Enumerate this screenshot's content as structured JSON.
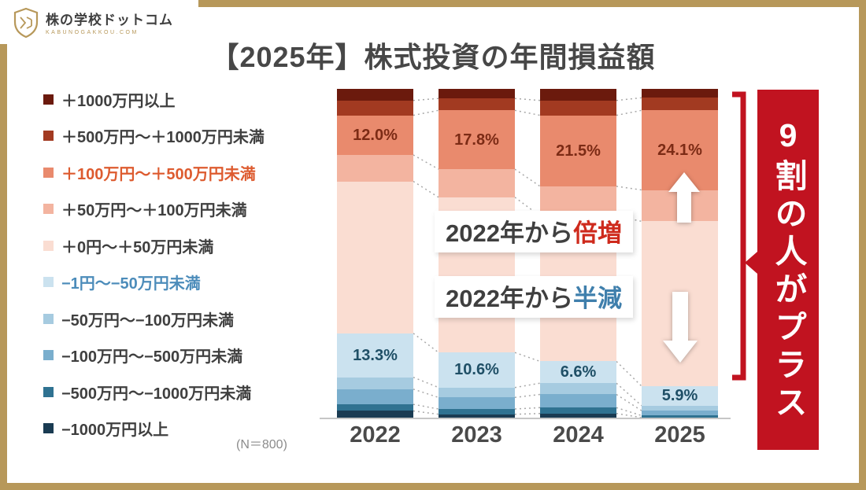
{
  "page": {
    "frame_color": "#B7985A",
    "background": "#FFFFFF"
  },
  "brand": {
    "name": "株の学校ドットコム",
    "subtitle": "KABUNOGAKKOU.COM"
  },
  "title": "【2025年】株式投資の年間損益額",
  "sample_note": "(N＝800)",
  "side_banner": {
    "text": "9割の人がプラス",
    "color": "#C11320"
  },
  "annotations": {
    "doubled": {
      "prefix": "2022年から",
      "highlight": "倍増",
      "highlight_color": "#CE2A1C"
    },
    "halved": {
      "prefix": "2022年から",
      "highlight": "半減",
      "highlight_color": "#3F7FAC"
    }
  },
  "chart_data": {
    "type": "bar",
    "stacked": true,
    "title": "【2025年】株式投資の年間損益額",
    "unit": "%",
    "ylim": [
      0,
      100
    ],
    "legend_position": "left",
    "categories": [
      "2022",
      "2023",
      "2024",
      "2025"
    ],
    "series": [
      {
        "name": "＋1000万円以上",
        "color": "#6B1A0D",
        "values": [
          3.5,
          2.9,
          3.5,
          2.7
        ]
      },
      {
        "name": "＋500万円～＋1000万円未満",
        "color": "#A23A21",
        "values": [
          4.5,
          3.6,
          4.5,
          3.8
        ]
      },
      {
        "name": "＋100万円～＋500万円未満",
        "color": "#E98A6D",
        "legend_text_color": "#DD5B2F",
        "label_color": "#7C2B15",
        "labels": [
          "12.0%",
          "17.8%",
          "21.5%",
          "24.1%"
        ],
        "values": [
          12.0,
          17.8,
          21.5,
          24.1
        ]
      },
      {
        "name": "＋50万円～＋100万円未満",
        "color": "#F3B4A0",
        "values": [
          8.0,
          8.5,
          9.0,
          9.5
        ]
      },
      {
        "name": "＋0円～＋50万円未満",
        "color": "#FADDD2",
        "values": [
          46.0,
          47.0,
          44.0,
          49.9
        ]
      },
      {
        "name": "−1円～−50万円未満",
        "color": "#CBE2EF",
        "legend_text_color": "#4C8CBA",
        "label_color": "#1F4F66",
        "labels": [
          "13.3%",
          "10.6%",
          "6.6%",
          "5.9%"
        ],
        "values": [
          13.3,
          10.6,
          6.6,
          5.9
        ]
      },
      {
        "name": "−50万円～−100万円未満",
        "color": "#A6CBE0",
        "values": [
          3.6,
          3.0,
          3.4,
          1.5
        ]
      },
      {
        "name": "−100万円～−500万円未満",
        "color": "#7AAECD",
        "values": [
          4.6,
          3.5,
          4.0,
          1.5
        ]
      },
      {
        "name": "−500万円～−1000万円未満",
        "color": "#2F7291",
        "values": [
          2.0,
          1.6,
          1.75,
          0.6
        ]
      },
      {
        "name": "−1000万円以上",
        "color": "#1A3B52",
        "values": [
          2.5,
          1.5,
          1.75,
          0.5
        ]
      }
    ],
    "plus_total_by_year": [
      74.0,
      79.8,
      82.5,
      90.0
    ]
  }
}
